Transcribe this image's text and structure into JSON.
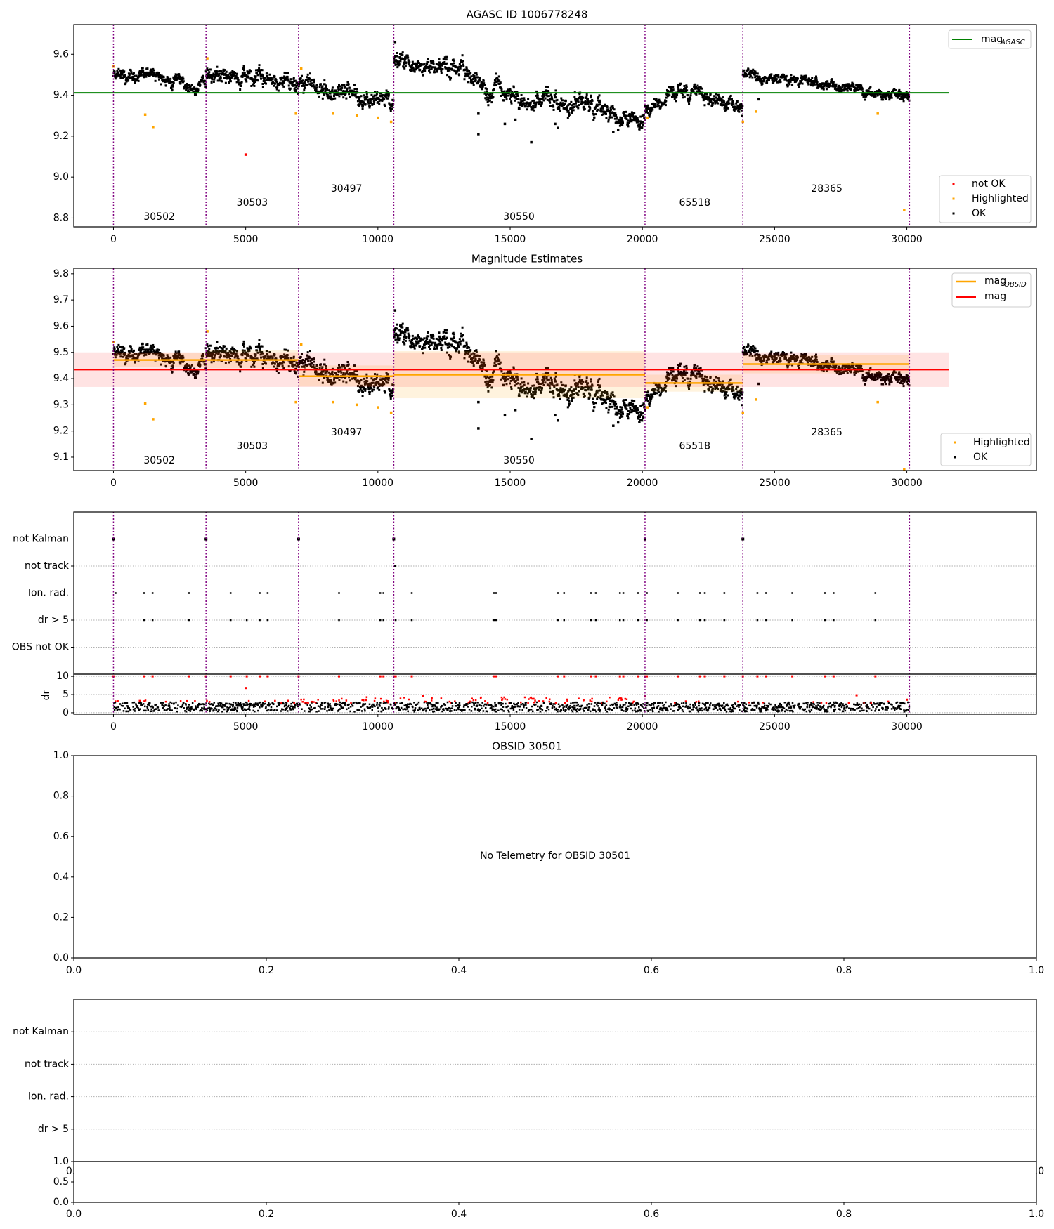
{
  "chart_data": {
    "type": "scatter",
    "colors": {
      "ok": "#000000",
      "highlighted": "#ffa500",
      "not_ok": "#ff0000",
      "mag_agasc": "#008000",
      "mag": "#ff0000",
      "mag_obsid": "#ffa500",
      "boundary": "#800080",
      "grid": "#b0b0b0"
    },
    "obsid_boundaries": [
      0,
      3500,
      7000,
      10600,
      20100,
      23800,
      30100
    ],
    "obsids": [
      {
        "id": "30502",
        "start": 0,
        "end": 3500,
        "curve": [
          [
            0,
            9.485
          ],
          [
            1500,
            9.48
          ],
          [
            3500,
            9.455
          ]
        ],
        "noise": 0.022,
        "mag_obsid": 9.471,
        "band": [
          9.445,
          9.497
        ],
        "label_x": 1732,
        "label_y_top": 8.805,
        "label_y_mid": 9.087
      },
      {
        "id": "30503",
        "start": 3500,
        "end": 7000,
        "curve": [
          [
            3500,
            9.49
          ],
          [
            4800,
            9.5
          ],
          [
            7000,
            9.44
          ]
        ],
        "noise": 0.028,
        "mag_obsid": 9.471,
        "band": [
          9.44,
          9.51
        ],
        "label_x": 5247,
        "label_y_top": 8.874,
        "label_y_mid": 9.141
      },
      {
        "id": "30497",
        "start": 7000,
        "end": 10600,
        "curve": [
          [
            7000,
            9.45
          ],
          [
            8500,
            9.41
          ],
          [
            10000,
            9.36
          ],
          [
            10600,
            9.38
          ]
        ],
        "noise": 0.028,
        "mag_obsid": 9.409,
        "band": [
          9.37,
          9.45
        ],
        "label_x": 8813,
        "label_y_top": 8.943,
        "label_y_mid": 9.194
      },
      {
        "id": "30550",
        "start": 10600,
        "end": 20100,
        "curve": [
          [
            10600,
            9.56
          ],
          [
            12500,
            9.53
          ],
          [
            14000,
            9.45
          ],
          [
            16000,
            9.38
          ],
          [
            18000,
            9.34
          ],
          [
            20000,
            9.28
          ]
        ],
        "noise": 0.03,
        "mag_obsid": 9.415,
        "band": [
          9.325,
          9.505
        ],
        "label_x": 15333,
        "label_y_top": 8.805,
        "label_y_mid": 9.087
      },
      {
        "id": "65518",
        "start": 20100,
        "end": 23800,
        "curve": [
          [
            20100,
            9.36
          ],
          [
            21500,
            9.41
          ],
          [
            23500,
            9.38
          ],
          [
            23800,
            9.35
          ]
        ],
        "noise": 0.024,
        "mag_obsid": 9.383,
        "band": [
          9.35,
          9.415
        ],
        "label_x": 21981,
        "label_y_top": 8.874,
        "label_y_mid": 9.141
      },
      {
        "id": "28365",
        "start": 23800,
        "end": 30100,
        "curve": [
          [
            23800,
            9.51
          ],
          [
            26000,
            9.48
          ],
          [
            28000,
            9.44
          ],
          [
            30100,
            9.39
          ]
        ],
        "noise": 0.018,
        "mag_obsid": 9.455,
        "band": [
          9.42,
          9.49
        ],
        "label_x": 26973,
        "label_y_top": 8.943,
        "label_y_mid": 9.194
      }
    ],
    "mag_agasc": 9.412,
    "mag": 9.434,
    "mag_band": [
      9.368,
      9.5
    ],
    "line_xrange": [
      -1500,
      31600
    ],
    "outliers_highlighted": [
      [
        0,
        9.54
      ],
      [
        1200,
        9.305
      ],
      [
        1500,
        9.245
      ],
      [
        3550,
        9.58
      ],
      [
        6900,
        9.31
      ],
      [
        7100,
        9.53
      ],
      [
        8300,
        9.31
      ],
      [
        9200,
        9.3
      ],
      [
        10000,
        9.29
      ],
      [
        10500,
        9.27
      ],
      [
        20200,
        9.29
      ],
      [
        23800,
        9.27
      ],
      [
        24300,
        9.32
      ],
      [
        28900,
        9.31
      ],
      [
        29900,
        8.84
      ]
    ],
    "outliers_ok": [
      [
        10650,
        9.66
      ],
      [
        13800,
        9.21
      ],
      [
        13800,
        9.31
      ],
      [
        14800,
        9.26
      ],
      [
        15200,
        9.28
      ],
      [
        15800,
        9.17
      ],
      [
        16700,
        9.26
      ],
      [
        16800,
        9.24
      ],
      [
        18900,
        9.22
      ],
      [
        24400,
        9.38
      ]
    ],
    "outliers_not_ok": [
      [
        5000,
        9.11
      ]
    ],
    "flags": {
      "not_kalman": [
        0,
        3500,
        7000,
        10600,
        20100,
        23800
      ],
      "not_track": [
        10650
      ],
      "ion_rad": [
        80,
        1150,
        1480,
        2850,
        4430,
        5530,
        5830,
        8530,
        10090,
        10210,
        11280,
        14390,
        14470,
        16810,
        17040,
        18060,
        18240,
        19150,
        19280,
        19840,
        20170,
        21340,
        22180,
        22360,
        23100,
        24350,
        24680,
        25670,
        26900,
        27230,
        28810
      ],
      "dr_gt_5": [
        1150,
        1480,
        2850,
        4430,
        5040,
        5530,
        5830,
        8530,
        10090,
        10210,
        10670,
        11280,
        14390,
        14470,
        16810,
        17040,
        18060,
        18240,
        19150,
        19280,
        19840,
        20170,
        21340,
        22180,
        22360,
        23100,
        24350,
        24680,
        25670,
        26900,
        27230,
        28810
      ],
      "obs_not_ok": []
    },
    "dr_outliers": [
      [
        5000,
        6.8
      ],
      [
        11700,
        4.6
      ],
      [
        20100,
        4.5
      ],
      [
        28100,
        4.8
      ],
      [
        30000,
        3.6
      ]
    ],
    "panels": [
      {
        "title": "AGASC ID 1006778248",
        "xlim": [
          -1500,
          34900
        ],
        "ylim": [
          8.757,
          9.745
        ],
        "xticks": [
          {
            "v": 0,
            "t": "0"
          },
          {
            "v": 5000,
            "t": "5000"
          },
          {
            "v": 10000,
            "t": "10000"
          },
          {
            "v": 15000,
            "t": "15000"
          },
          {
            "v": 20000,
            "t": "20000"
          },
          {
            "v": 25000,
            "t": "25000"
          },
          {
            "v": 30000,
            "t": "30000"
          }
        ],
        "yticks": [
          {
            "v": 8.8,
            "t": "8.8"
          },
          {
            "v": 9.0,
            "t": "9.0"
          },
          {
            "v": 9.2,
            "t": "9.2"
          },
          {
            "v": 9.4,
            "t": "9.4"
          },
          {
            "v": 9.6,
            "t": "9.6"
          }
        ],
        "legend_top": [
          {
            "main": "mag",
            "sub": "AGASC"
          }
        ],
        "legend_bottom": [
          "not OK",
          "Highlighted",
          "OK"
        ]
      },
      {
        "title": "Magnitude Estimates",
        "xlim": [
          -1500,
          34900
        ],
        "ylim": [
          9.049,
          9.821
        ],
        "yticks": [
          {
            "v": 9.1,
            "t": "9.1"
          },
          {
            "v": 9.2,
            "t": "9.2"
          },
          {
            "v": 9.3,
            "t": "9.3"
          },
          {
            "v": 9.4,
            "t": "9.4"
          },
          {
            "v": 9.5,
            "t": "9.5"
          },
          {
            "v": 9.6,
            "t": "9.6"
          },
          {
            "v": 9.7,
            "t": "9.7"
          },
          {
            "v": 9.8,
            "t": "9.8"
          }
        ],
        "legend_top": [
          {
            "main": "mag",
            "sub": "OBSID"
          },
          {
            "main": "mag",
            "sub": ""
          }
        ],
        "legend_bottom": [
          "Highlighted",
          "OK"
        ]
      },
      {
        "title": "",
        "xlim": [
          -1500,
          34900
        ],
        "ylim": [
          -1,
          5
        ],
        "row_labels": [
          "OBS not OK",
          "dr > 5",
          "Ion. rad.",
          "not track",
          "not Kalman"
        ],
        "dr_ylabel": "dr",
        "dr_ylim": [
          -0.4,
          10.6
        ],
        "dr_yticks": [
          {
            "v": 0,
            "t": "0"
          },
          {
            "v": 5,
            "t": "5"
          },
          {
            "v": 10,
            "t": "10"
          }
        ]
      },
      {
        "title": "OBSID 30501",
        "message": "No Telemetry for OBSID 30501",
        "ticks": [
          {
            "v": 0,
            "t": "0.0"
          },
          {
            "v": 0.2,
            "t": "0.2"
          },
          {
            "v": 0.4,
            "t": "0.4"
          },
          {
            "v": 0.6,
            "t": "0.6"
          },
          {
            "v": 0.8,
            "t": "0.8"
          },
          {
            "v": 1.0,
            "t": "1.0"
          }
        ]
      },
      {
        "title": "",
        "ylim": [
          -1,
          4
        ],
        "row_labels": [
          "dr > 5",
          "Ion. rad.",
          "not track",
          "not Kalman"
        ],
        "sub_yticks": [
          {
            "v": 0,
            "t": "0.0"
          },
          {
            "v": 0.5,
            "t": "0.5"
          },
          {
            "v": 1.0,
            "t": "1.0"
          }
        ],
        "hidden_xticks": [
          {
            "v": 0,
            "t": "0.0"
          },
          {
            "v": 1,
            "t": "1.0"
          }
        ]
      }
    ]
  }
}
